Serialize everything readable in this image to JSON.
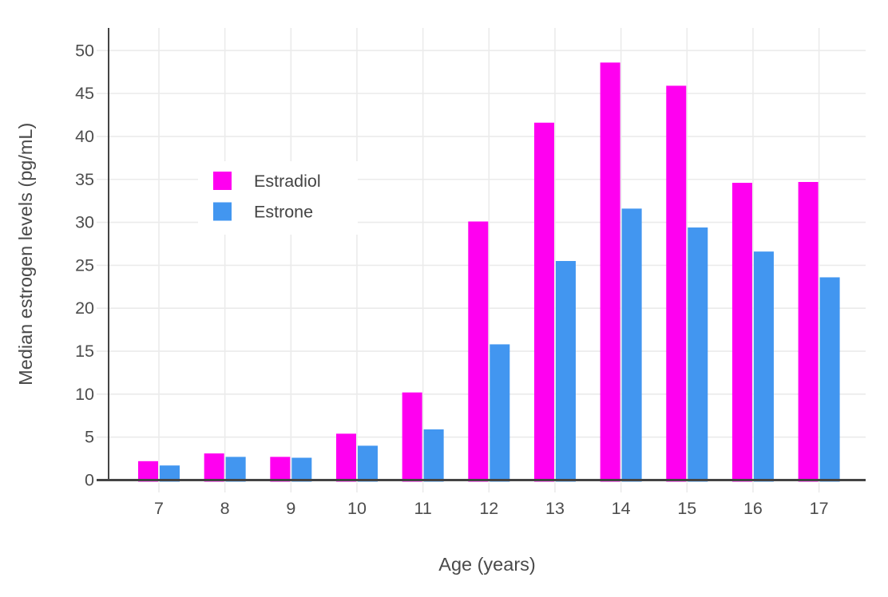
{
  "chart_data": {
    "type": "bar",
    "title": "",
    "xlabel": "Age (years)",
    "ylabel": "Median estrogen levels (pg/mL)",
    "categories": [
      "7",
      "8",
      "9",
      "10",
      "11",
      "12",
      "13",
      "14",
      "15",
      "16",
      "17"
    ],
    "series": [
      {
        "name": "Estradiol",
        "color": "#ff00f0",
        "values": [
          2.2,
          3.1,
          2.7,
          5.4,
          10.2,
          30.1,
          41.6,
          48.6,
          45.9,
          34.6,
          34.7
        ]
      },
      {
        "name": "Estrone",
        "color": "#4296f0",
        "values": [
          1.7,
          2.7,
          2.6,
          4.0,
          5.9,
          15.8,
          25.5,
          31.6,
          29.4,
          26.6,
          23.6
        ]
      }
    ],
    "ylim": [
      0,
      50
    ],
    "yticks": [
      0,
      5,
      10,
      15,
      20,
      25,
      30,
      35,
      40,
      45,
      50
    ],
    "grid": true,
    "legend_position": "inside-top-left"
  },
  "legend": {
    "items": [
      {
        "label": "Estradiol",
        "color": "#ff00f0"
      },
      {
        "label": "Estrone",
        "color": "#4296f0"
      }
    ]
  },
  "colors": {
    "background": "#ffffff",
    "gridline": "#ebebeb",
    "axis_line": "#444444",
    "tick_label": "#4d4d4d",
    "axis_title": "#4a4a4a",
    "legend_text": "#444444",
    "estradiol": "#ff00f0",
    "estrone": "#4296f0"
  }
}
